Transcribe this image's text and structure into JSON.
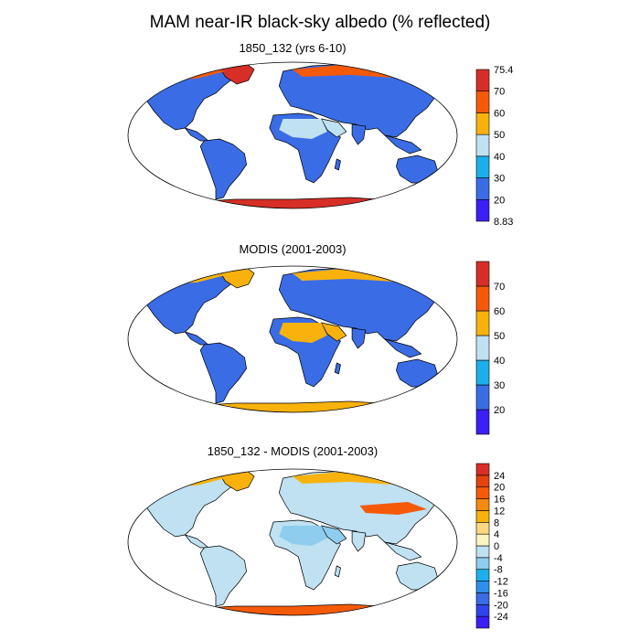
{
  "title": "MAM near-IR black-sky albedo (% reflected)",
  "panels": [
    {
      "title": "1850_132 (yrs 6-10)",
      "colorbar": {
        "colors": [
          "#3c1ff5",
          "#3a6ce6",
          "#1bb0ec",
          "#bfe1f1",
          "#f9b20c",
          "#f55a08",
          "#d72f27"
        ],
        "labels": [
          "8.83",
          "20",
          "30",
          "40",
          "50",
          "60",
          "70",
          "75.4"
        ]
      }
    },
    {
      "title": "MODIS (2001-2003)",
      "colorbar": {
        "colors": [
          "#3c1ff5",
          "#3a6ce6",
          "#1bb0ec",
          "#bfe1f1",
          "#f9b20c",
          "#f55a08",
          "#d72f27"
        ],
        "labels": [
          "",
          "20",
          "30",
          "40",
          "50",
          "60",
          "70",
          ""
        ]
      }
    },
    {
      "title": "1850_132 - MODIS (2001-2003)",
      "colorbar": {
        "colors": [
          "#3c1ff5",
          "#2f44ea",
          "#3a6ce6",
          "#2d90ec",
          "#1bb0ec",
          "#8ecdee",
          "#bfe1f1",
          "#fbf4c1",
          "#fbd77d",
          "#f9b20c",
          "#f78a0a",
          "#f55a08",
          "#e5420f",
          "#d72f27"
        ],
        "labels": [
          "",
          "-24",
          "-20",
          "-16",
          "-12",
          "-8",
          "-4",
          "0",
          "4",
          "8",
          "12",
          "16",
          "20",
          "24",
          ""
        ]
      }
    }
  ]
}
